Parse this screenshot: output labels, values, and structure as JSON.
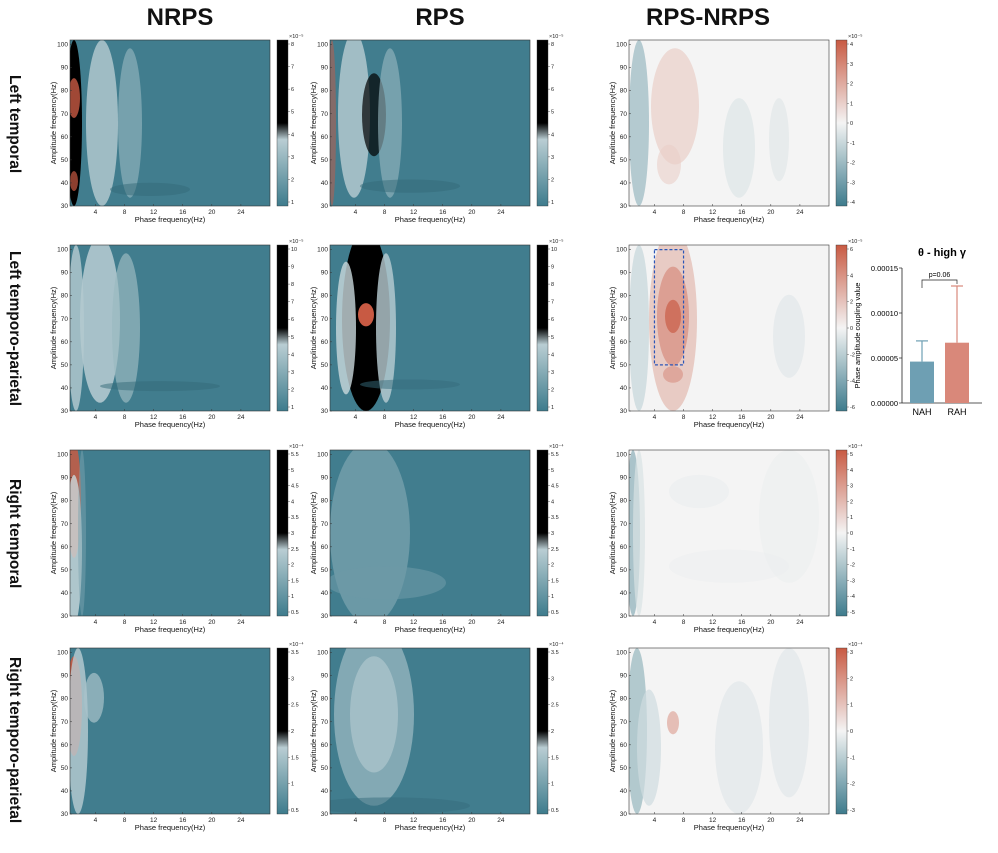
{
  "columns": [
    "NRPS",
    "RPS",
    "RPS-NRPS"
  ],
  "rows": [
    "Left temporal",
    "Left temporo-parietal",
    "Right temporal",
    "Right temporo-parietal"
  ],
  "axes": {
    "xlabel": "Phase frequency(Hz)",
    "ylabel": "Amplitude frequency(Hz)",
    "xticks": [
      "4",
      "8",
      "12",
      "16",
      "20",
      "24"
    ],
    "yticks": [
      "30",
      "40",
      "50",
      "60",
      "70",
      "80",
      "90",
      "100"
    ]
  },
  "colors": {
    "low": "#3d7b8c",
    "mid": "#f4f4f4",
    "high": "#c85a43",
    "box": "#2a56b8",
    "nah": "#6e9fb3",
    "rah": "#d9887a"
  },
  "panels": [
    {
      "row": 0,
      "col": 0,
      "cbar": {
        "exp": "×10⁻⁵",
        "ticks": [
          "8",
          "7",
          "6",
          "5",
          "4",
          "3",
          "2",
          "1"
        ]
      }
    },
    {
      "row": 0,
      "col": 1,
      "cbar": {
        "exp": "×10⁻⁵",
        "ticks": [
          "8",
          "7",
          "6",
          "5",
          "4",
          "3",
          "2",
          "1"
        ]
      }
    },
    {
      "row": 0,
      "col": 2,
      "cbar": {
        "exp": "×10⁻⁵",
        "ticks": [
          "4",
          "3",
          "2",
          "1",
          "0",
          "-1",
          "-2",
          "-3",
          "-4"
        ]
      }
    },
    {
      "row": 1,
      "col": 0,
      "cbar": {
        "exp": "×10⁻⁵",
        "ticks": [
          "10",
          "9",
          "8",
          "7",
          "6",
          "5",
          "4",
          "3",
          "2",
          "1"
        ]
      }
    },
    {
      "row": 1,
      "col": 1,
      "cbar": {
        "exp": "×10⁻⁵",
        "ticks": [
          "10",
          "9",
          "8",
          "7",
          "6",
          "5",
          "4",
          "3",
          "2",
          "1"
        ]
      }
    },
    {
      "row": 1,
      "col": 2,
      "cbar": {
        "exp": "×10⁻⁵",
        "ticks": [
          "6",
          "4",
          "2",
          "0",
          "-2",
          "-4",
          "-6"
        ]
      }
    },
    {
      "row": 2,
      "col": 0,
      "cbar": {
        "exp": "×10⁻⁴",
        "ticks": [
          "5.5",
          "5",
          "4.5",
          "4",
          "3.5",
          "3",
          "2.5",
          "2",
          "1.5",
          "1",
          "0.5"
        ]
      }
    },
    {
      "row": 2,
      "col": 1,
      "cbar": {
        "exp": "×10⁻⁴",
        "ticks": [
          "5.5",
          "5",
          "4.5",
          "4",
          "3.5",
          "3",
          "2.5",
          "2",
          "1.5",
          "1",
          "0.5"
        ]
      }
    },
    {
      "row": 2,
      "col": 2,
      "cbar": {
        "exp": "×10⁻⁴",
        "ticks": [
          "5",
          "4",
          "3",
          "2",
          "1",
          "0",
          "-1",
          "-2",
          "-3",
          "-4",
          "-5"
        ]
      }
    },
    {
      "row": 3,
      "col": 0,
      "cbar": {
        "exp": "×10⁻⁴",
        "ticks": [
          "3.5",
          "3",
          "2.5",
          "2",
          "1.5",
          "1",
          "0.5"
        ]
      }
    },
    {
      "row": 3,
      "col": 1,
      "cbar": {
        "exp": "×10⁻⁴",
        "ticks": [
          "3.5",
          "3",
          "2.5",
          "2",
          "1.5",
          "1",
          "0.5"
        ]
      }
    },
    {
      "row": 3,
      "col": 2,
      "cbar": {
        "exp": "×10⁻⁴",
        "ticks": [
          "3",
          "2",
          "1",
          "0",
          "-1",
          "-2",
          "-3"
        ]
      }
    }
  ],
  "chart_data": {
    "type": "bar",
    "title": "θ - high γ",
    "ylabel": "Phase amplitude coupling value",
    "categories": [
      "NAH",
      "RAH"
    ],
    "values": [
      4.6e-05,
      6.7e-05
    ],
    "error_upper": [
      6.9e-05,
      0.00013
    ],
    "ylim": [
      0,
      0.00015
    ],
    "yticks": [
      "0.00000",
      "0.00005",
      "0.00010",
      "0.00015"
    ],
    "annotation": "p=0.06"
  }
}
